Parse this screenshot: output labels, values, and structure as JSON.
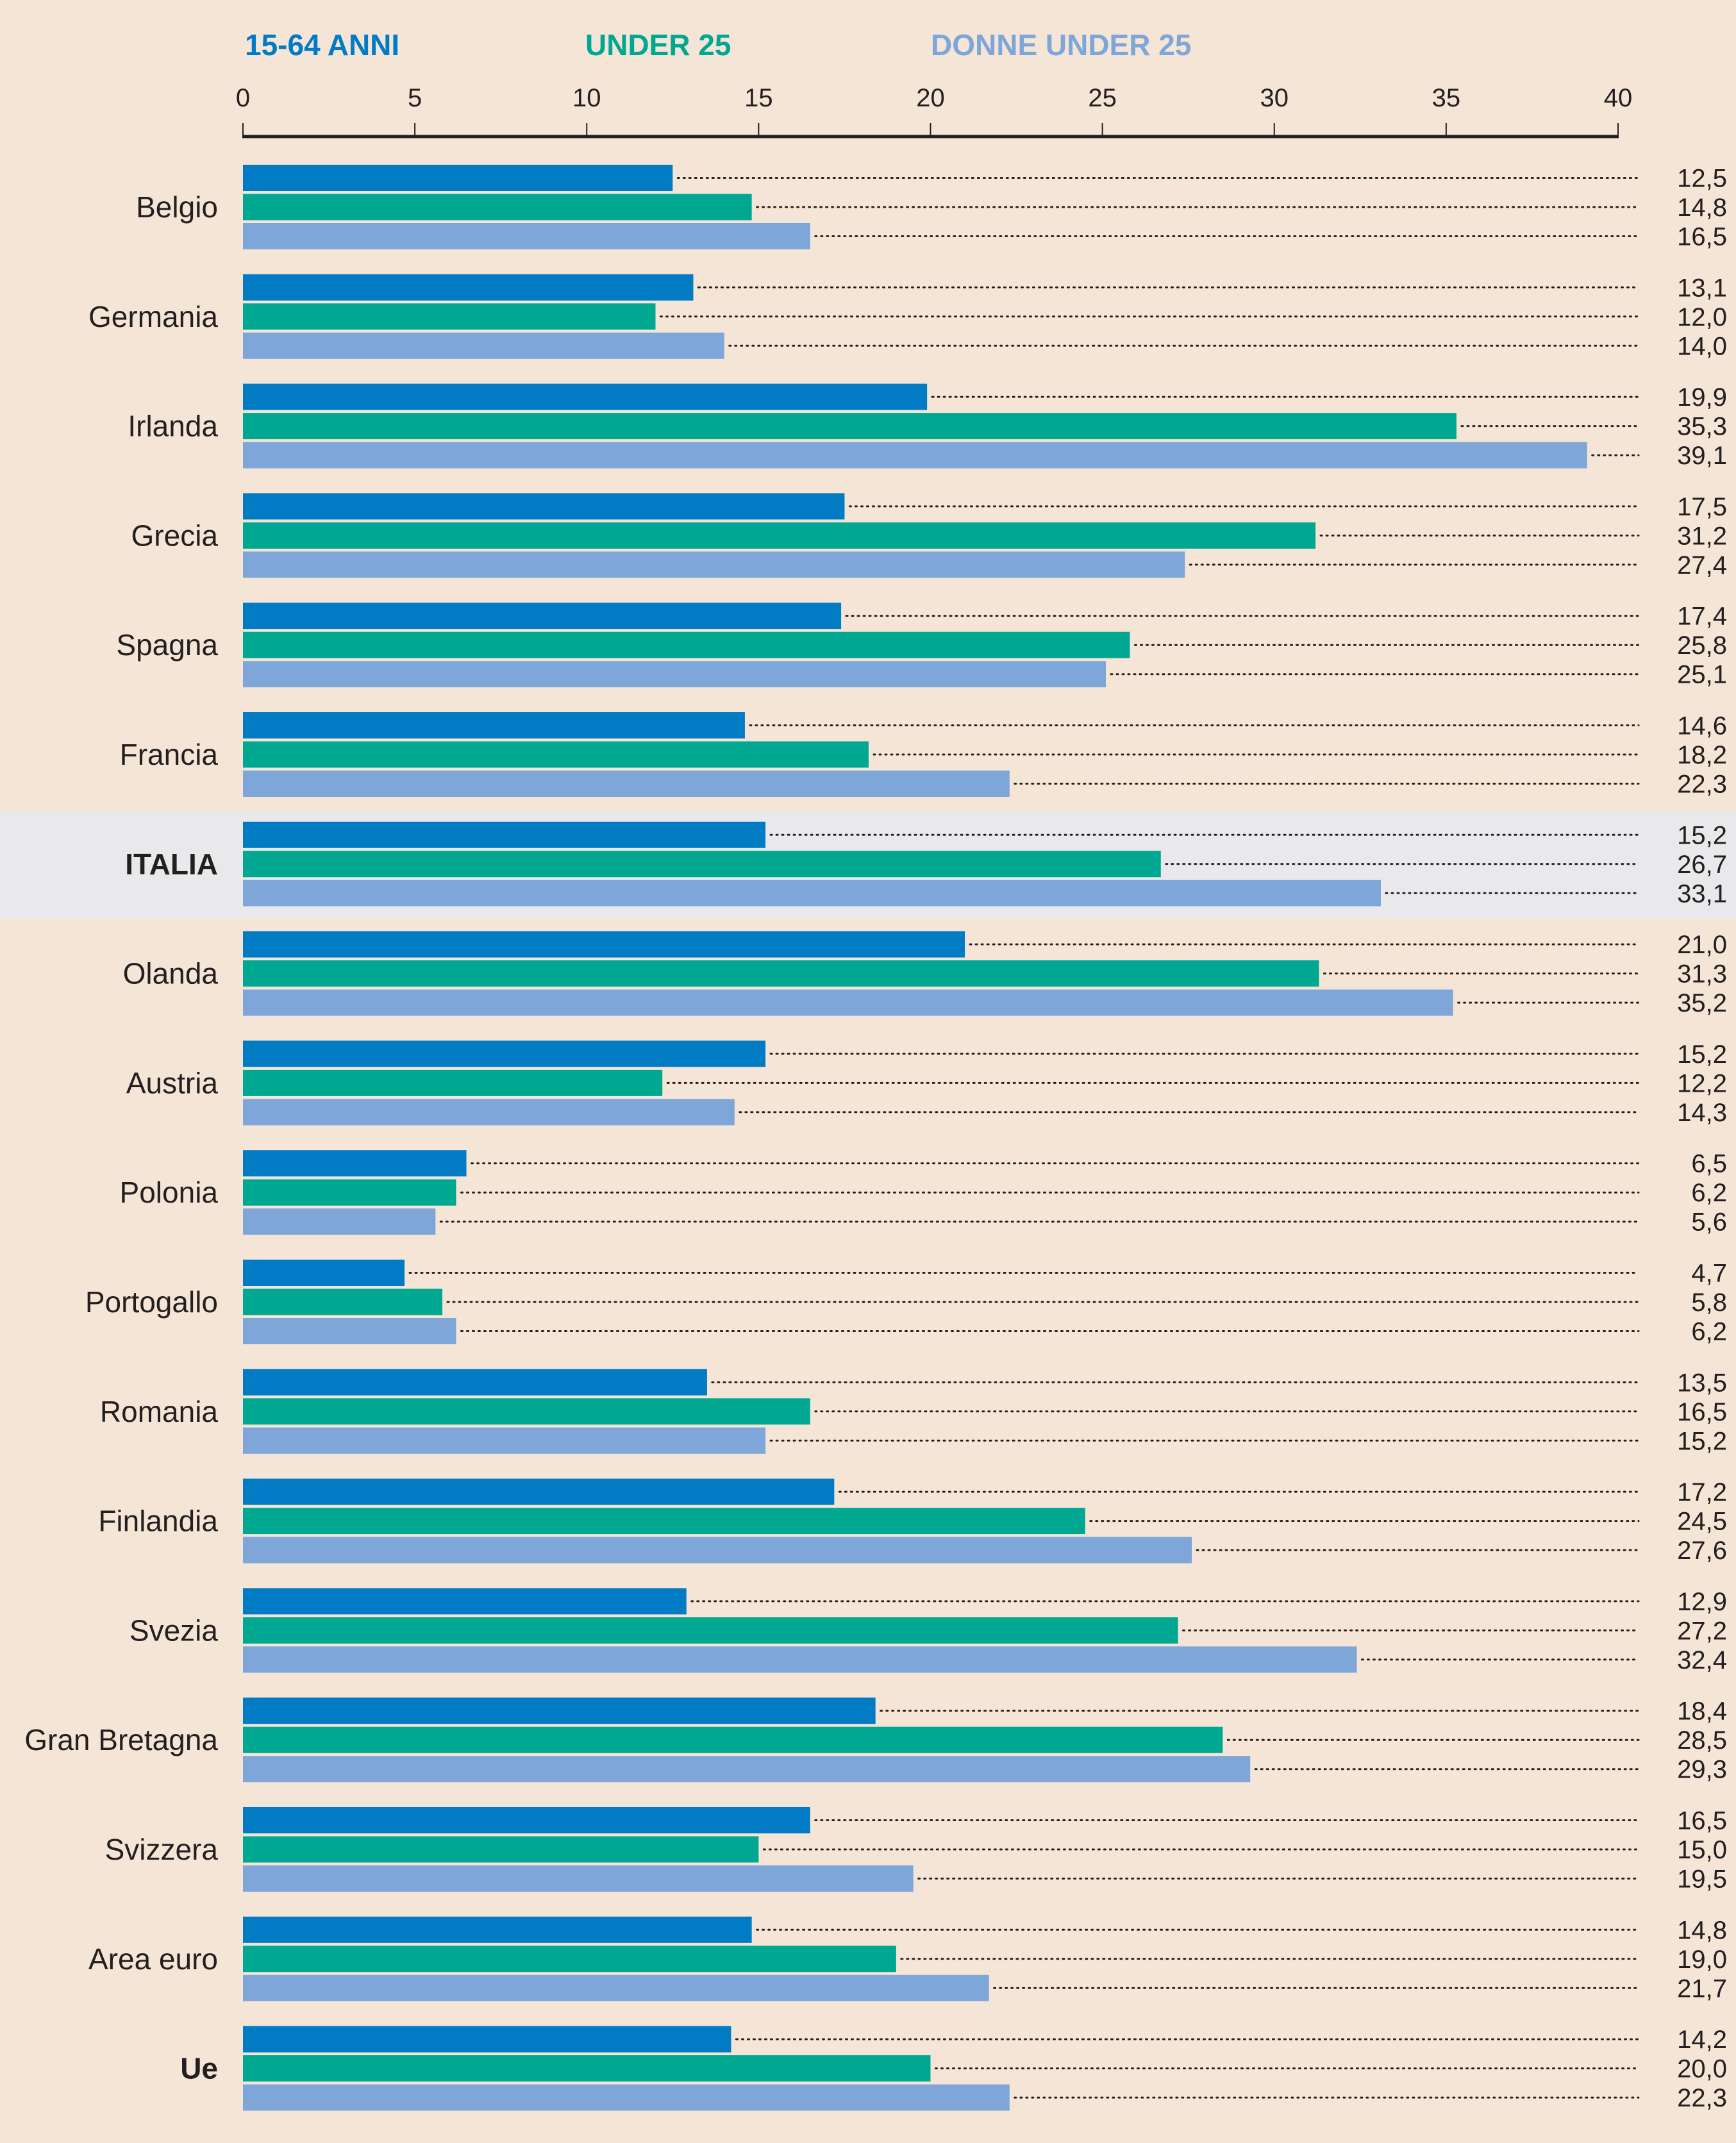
{
  "chart_data": {
    "type": "bar",
    "orientation": "horizontal",
    "title": "",
    "xlabel": "",
    "ylabel": "",
    "xlim": [
      0,
      40
    ],
    "xticks": [
      0,
      5,
      10,
      15,
      20,
      25,
      30,
      35,
      40
    ],
    "grid": false,
    "legend_position": "top",
    "decimal_separator": ",",
    "highlight_category": "ITALIA",
    "bold_categories": [
      "ITALIA",
      "Ue"
    ],
    "colors": {
      "background": "#f4e5d6",
      "highlight_band": "#e9e9eb",
      "text": "#231f20"
    },
    "categories": [
      "Belgio",
      "Germania",
      "Irlanda",
      "Grecia",
      "Spagna",
      "Francia",
      "ITALIA",
      "Olanda",
      "Austria",
      "Polonia",
      "Portogallo",
      "Romania",
      "Finlandia",
      "Svezia",
      "Gran Bretagna",
      "Svizzera",
      "Area euro",
      "Ue"
    ],
    "series": [
      {
        "name": "15-64 ANNI",
        "color": "#027bc5",
        "values": [
          12.5,
          13.1,
          19.9,
          17.5,
          17.4,
          14.6,
          15.2,
          21.0,
          15.2,
          6.5,
          4.7,
          13.5,
          17.2,
          12.9,
          18.4,
          16.5,
          14.8,
          14.2
        ]
      },
      {
        "name": "UNDER 25",
        "color": "#00a892",
        "values": [
          14.8,
          12.0,
          35.3,
          31.2,
          25.8,
          18.2,
          26.7,
          31.3,
          12.2,
          6.2,
          5.8,
          16.5,
          24.5,
          27.2,
          28.5,
          15.0,
          19.0,
          20.0
        ]
      },
      {
        "name": "DONNE UNDER 25",
        "color": "#7fa6d8",
        "values": [
          16.5,
          14.0,
          39.1,
          27.4,
          25.1,
          22.3,
          33.1,
          35.2,
          14.3,
          5.6,
          6.2,
          15.2,
          27.6,
          32.4,
          29.3,
          19.5,
          21.7,
          22.3
        ]
      }
    ]
  }
}
